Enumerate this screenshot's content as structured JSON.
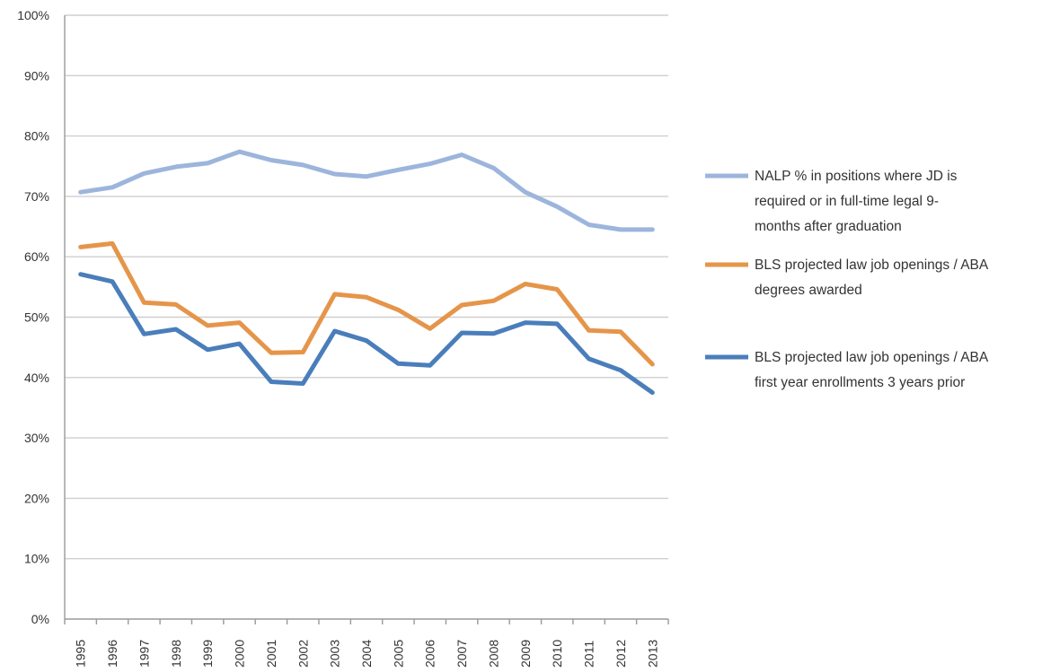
{
  "chart_data": {
    "type": "line",
    "title": "",
    "xlabel": "",
    "ylabel": "",
    "x": [
      "1995",
      "1996",
      "1997",
      "1998",
      "1999",
      "2000",
      "2001",
      "2002",
      "2003",
      "2004",
      "2005",
      "2006",
      "2007",
      "2008",
      "2009",
      "2010",
      "2011",
      "2012",
      "2013"
    ],
    "ylim": [
      0,
      100
    ],
    "yticks": [
      "0%",
      "10%",
      "20%",
      "30%",
      "40%",
      "50%",
      "60%",
      "70%",
      "80%",
      "90%",
      "100%"
    ],
    "grid": true,
    "legend_position": "right",
    "series": [
      {
        "name": "NALP % in positions where JD is required or in full-time legal 9-months after graduation",
        "legend_lines": [
          "NALP % in positions where JD is",
          "required or in full-time legal 9-",
          "months after graduation"
        ],
        "color": "#9DB5DC",
        "values": [
          70.7,
          71.5,
          73.8,
          74.9,
          75.5,
          77.4,
          76.0,
          75.2,
          73.7,
          73.3,
          74.4,
          75.4,
          76.9,
          74.7,
          70.7,
          68.3,
          65.3,
          64.5,
          64.5
        ]
      },
      {
        "name": "BLS projected law job openings / ABA degrees awarded",
        "legend_lines": [
          "BLS projected law job openings / ABA",
          "degrees awarded"
        ],
        "color": "#E5954A",
        "values": [
          61.6,
          62.2,
          52.4,
          52.1,
          48.6,
          49.1,
          44.1,
          44.2,
          53.8,
          53.3,
          51.2,
          48.1,
          52.0,
          52.7,
          55.5,
          54.6,
          47.8,
          47.6,
          42.2
        ]
      },
      {
        "name": "BLS projected law job openings / ABA first year enrollments 3 years prior",
        "legend_lines": [
          "BLS projected law job openings / ABA",
          "first year enrollments 3 years prior"
        ],
        "color": "#4A7EBB",
        "values": [
          57.1,
          55.9,
          47.2,
          48.0,
          44.6,
          45.6,
          39.3,
          39.0,
          47.7,
          46.1,
          42.3,
          42.0,
          47.4,
          47.3,
          49.1,
          48.9,
          43.1,
          41.2,
          37.5
        ]
      }
    ]
  }
}
